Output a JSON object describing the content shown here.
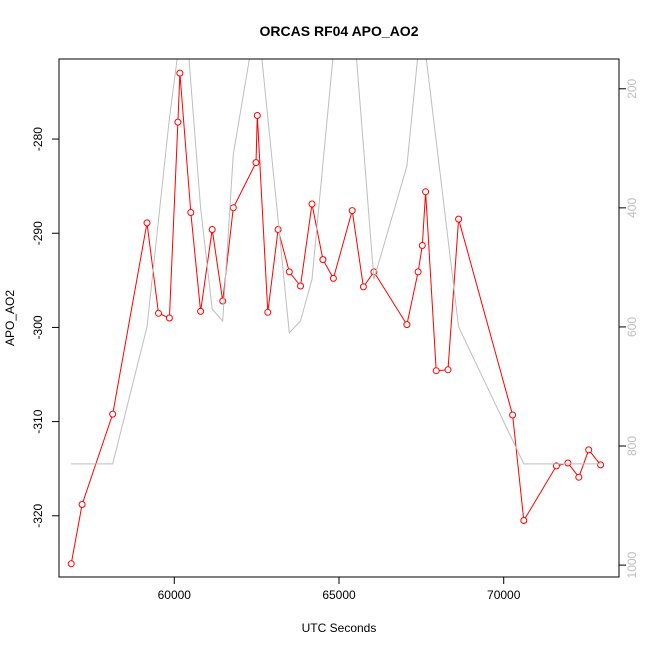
{
  "chart_data": {
    "type": "line",
    "title": "ORCAS RF04 APO_AO2",
    "xlabel": "UTC Seconds",
    "ylabel": "APO_AO2",
    "xlim": [
      56500,
      73500
    ],
    "ylim": [
      -326.5,
      -271.5
    ],
    "x_ticks": [
      60000,
      65000,
      70000
    ],
    "y_ticks": [
      -320,
      -310,
      -300,
      -290,
      -280
    ],
    "y2_lim": [
      1020,
      150
    ],
    "y2_ticks": [
      200,
      400,
      600,
      800,
      1000
    ],
    "grid": false,
    "series": [
      {
        "color": "#ff0000",
        "marker": "open-circle",
        "axis": "left",
        "x": [
          56870,
          57200,
          58130,
          59170,
          59520,
          59850,
          60110,
          60170,
          60500,
          60800,
          61150,
          61470,
          61790,
          62480,
          62520,
          62840,
          63150,
          63490,
          63830,
          64180,
          64510,
          64830,
          65400,
          65740,
          66060,
          67060,
          67400,
          67530,
          67630,
          67950,
          68310,
          68630,
          70270,
          70610,
          71600,
          71950,
          72280,
          72580,
          72940
        ],
        "y": [
          -325.1,
          -318.8,
          -309.2,
          -288.9,
          -298.5,
          -299.0,
          -278.2,
          -273.0,
          -287.8,
          -298.3,
          -289.6,
          -297.2,
          -287.3,
          -282.5,
          -277.5,
          -298.4,
          -289.6,
          -294.1,
          -295.6,
          -286.9,
          -292.8,
          -294.8,
          -287.6,
          -295.7,
          -294.1,
          -299.7,
          -294.1,
          -291.3,
          -285.6,
          -304.6,
          -304.5,
          -288.5,
          -309.3,
          -320.5,
          -314.7,
          -314.4,
          -315.9,
          -313.0,
          -314.6
        ]
      },
      {
        "color": "#bebebe",
        "marker": "none",
        "axis": "right",
        "x": [
          56870,
          58130,
          59170,
          59850,
          60110,
          60430,
          60800,
          61150,
          61470,
          61790,
          62310,
          62640,
          63150,
          63490,
          63830,
          64180,
          64830,
          65080,
          65520,
          66060,
          67060,
          67400,
          67630,
          68630,
          70610,
          72580,
          72940
        ],
        "y": [
          830,
          830,
          600,
          250,
          140,
          140,
          400,
          570,
          590,
          310,
          140,
          140,
          420,
          610,
          590,
          520,
          140,
          140,
          140,
          520,
          330,
          140,
          140,
          600,
          830,
          830,
          830
        ]
      }
    ]
  }
}
